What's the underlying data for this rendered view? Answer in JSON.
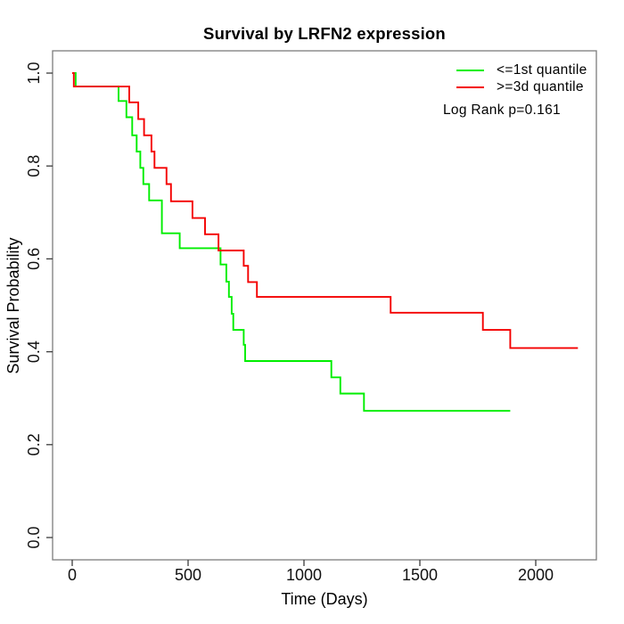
{
  "chart_data": {
    "type": "line",
    "subtype": "kaplan-meier-step",
    "title": "Survival by LRFN2 expression",
    "xlabel": "Time (Days)",
    "ylabel": "Survival Probability",
    "xlim": [
      -85,
      2260
    ],
    "ylim": [
      -0.05,
      1.05
    ],
    "xticks": [
      0,
      500,
      1000,
      1500,
      2000
    ],
    "yticks": [
      0.0,
      0.2,
      0.4,
      0.6,
      0.8,
      1.0
    ],
    "grid": false,
    "legend_position": "top-right",
    "annotation": "Log Rank p=0.161",
    "series": [
      {
        "name": "<=1st quantile",
        "color": "#00ee00",
        "points": [
          [
            0,
            1.0
          ],
          [
            15,
            0.971
          ],
          [
            200,
            0.94
          ],
          [
            234,
            0.905
          ],
          [
            259,
            0.866
          ],
          [
            278,
            0.831
          ],
          [
            294,
            0.796
          ],
          [
            307,
            0.761
          ],
          [
            332,
            0.726
          ],
          [
            387,
            0.655
          ],
          [
            464,
            0.623
          ],
          [
            640,
            0.588
          ],
          [
            665,
            0.551
          ],
          [
            676,
            0.518
          ],
          [
            688,
            0.482
          ],
          [
            695,
            0.447
          ],
          [
            740,
            0.415
          ],
          [
            746,
            0.38
          ],
          [
            1118,
            0.345
          ],
          [
            1157,
            0.31
          ],
          [
            1259,
            0.273
          ],
          [
            1890,
            0.273
          ]
        ]
      },
      {
        "name": ">=3d quantile",
        "color": "#f40000",
        "points": [
          [
            0,
            1.0
          ],
          [
            7,
            0.971
          ],
          [
            246,
            0.937
          ],
          [
            285,
            0.901
          ],
          [
            310,
            0.866
          ],
          [
            342,
            0.831
          ],
          [
            355,
            0.796
          ],
          [
            407,
            0.761
          ],
          [
            426,
            0.724
          ],
          [
            519,
            0.688
          ],
          [
            573,
            0.653
          ],
          [
            631,
            0.618
          ],
          [
            740,
            0.585
          ],
          [
            759,
            0.55
          ],
          [
            797,
            0.518
          ],
          [
            1374,
            0.484
          ],
          [
            1772,
            0.447
          ],
          [
            1890,
            0.408
          ],
          [
            2182,
            0.408
          ]
        ]
      }
    ]
  }
}
